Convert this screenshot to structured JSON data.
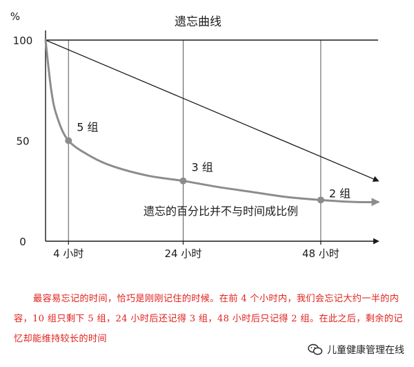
{
  "chart_data": {
    "type": "line",
    "title": "遗忘曲线",
    "y_unit": "%",
    "ylim": [
      0,
      100
    ],
    "y_ticks": [
      0,
      50,
      100
    ],
    "x_ticks": [
      {
        "x": 4,
        "label": "4 小时"
      },
      {
        "x": 24,
        "label": "24 小时"
      },
      {
        "x": 48,
        "label": "48 小时"
      }
    ],
    "xlim": [
      0,
      58
    ],
    "series": [
      {
        "style": "reference-line",
        "points": [
          [
            0,
            100
          ],
          [
            58,
            30
          ]
        ]
      },
      {
        "style": "curve",
        "points": [
          [
            0,
            100
          ],
          [
            1,
            75
          ],
          [
            2,
            62
          ],
          [
            4,
            50
          ],
          [
            8,
            42
          ],
          [
            12,
            37
          ],
          [
            18,
            32.5
          ],
          [
            24,
            30
          ],
          [
            30,
            27
          ],
          [
            36,
            24.5
          ],
          [
            42,
            22
          ],
          [
            48,
            20.5
          ],
          [
            54,
            19.5
          ],
          [
            58,
            19.5
          ]
        ],
        "markers": [
          {
            "x": 4,
            "y": 50,
            "label": "5 组"
          },
          {
            "x": 24,
            "y": 30,
            "label": "3 组"
          },
          {
            "x": 48,
            "y": 20.5,
            "label": "2 组"
          }
        ]
      }
    ],
    "annotation": "遗忘的百分比并不与时间成比例",
    "grid": {
      "horizontal": [
        100
      ],
      "vertical": [
        4,
        24,
        48
      ]
    }
  },
  "caption": "最容易忘记的时间，恰巧是刚刚记住的时候。在前 4 个小时内，我们会忘记大约一半的内容，10 组只剩下 5 组，24 小时后还记得 3 组，48 小时后只记得 2 组。在此之后，剩余的记忆却能维持较长的时间",
  "watermark": {
    "text": "儿童健康管理在线",
    "icon": "wechat-icon"
  },
  "colors": {
    "curve": "#8c8c8c",
    "axis": "#1a1a1a",
    "caption": "#e0221d",
    "grid": "#555555"
  }
}
